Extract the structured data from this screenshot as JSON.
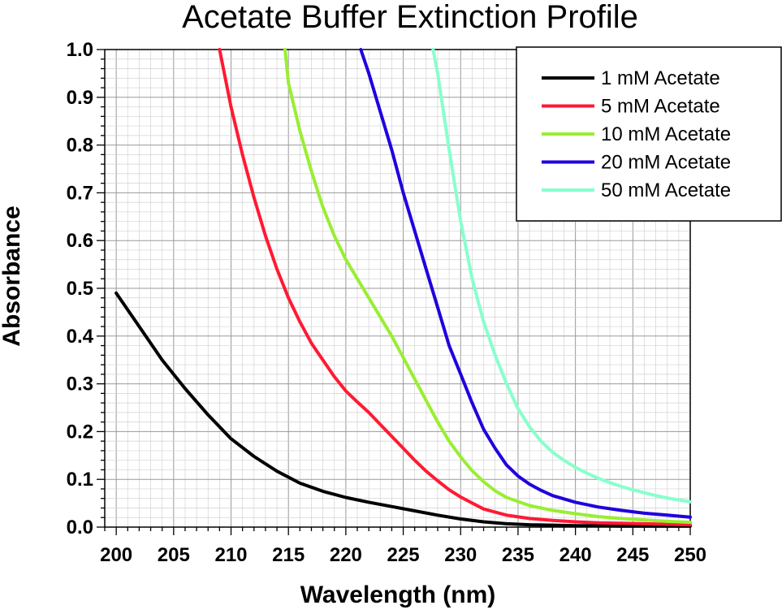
{
  "chart_data": {
    "type": "line",
    "title": "Acetate Buffer Extinction Profile",
    "xlabel": "Wavelength (nm)",
    "ylabel": "Absorbance",
    "xlim": [
      199,
      250
    ],
    "ylim": [
      0,
      1.0
    ],
    "xticks": [
      200,
      205,
      210,
      215,
      220,
      225,
      230,
      235,
      240,
      245,
      250
    ],
    "xtick_labels": [
      "200",
      "205",
      "210",
      "215",
      "220",
      "225",
      "230",
      "235",
      "240",
      "245",
      "250"
    ],
    "yticks": [
      0.0,
      0.1,
      0.2,
      0.3,
      0.4,
      0.5,
      0.6,
      0.7,
      0.8,
      0.9,
      1.0
    ],
    "ytick_labels": [
      "0.0",
      "0.1",
      "0.2",
      "0.3",
      "0.4",
      "0.5",
      "0.6",
      "0.7",
      "0.8",
      "0.9",
      "1.0"
    ],
    "grid": true,
    "legend_position": "top-right",
    "series": [
      {
        "name": "1 mM Acetate",
        "color": "#000000",
        "x": [
          200,
          202,
          204,
          206,
          208,
          210,
          212,
          214,
          216,
          218,
          220,
          222,
          224,
          226,
          228,
          230,
          232,
          234,
          236,
          238,
          240,
          242,
          244,
          246,
          248,
          250
        ],
        "y": [
          0.49,
          0.42,
          0.35,
          0.29,
          0.235,
          0.185,
          0.148,
          0.117,
          0.092,
          0.075,
          0.062,
          0.052,
          0.043,
          0.034,
          0.025,
          0.017,
          0.011,
          0.007,
          0.005,
          0.004,
          0.003,
          0.003,
          0.002,
          0.002,
          0.002,
          0.002
        ]
      },
      {
        "name": "5 mM Acetate",
        "color": "#ff1a33",
        "x": [
          209,
          210,
          211,
          212,
          213,
          214,
          215,
          216,
          217,
          218,
          219,
          220,
          221,
          222,
          223,
          224,
          225,
          226,
          227,
          228,
          229,
          230,
          232,
          234,
          236,
          238,
          240,
          242,
          244,
          246,
          248,
          250
        ],
        "y": [
          1.0,
          0.88,
          0.78,
          0.69,
          0.61,
          0.54,
          0.48,
          0.43,
          0.385,
          0.35,
          0.315,
          0.285,
          0.262,
          0.24,
          0.215,
          0.19,
          0.165,
          0.14,
          0.117,
          0.097,
          0.078,
          0.063,
          0.038,
          0.025,
          0.018,
          0.014,
          0.011,
          0.009,
          0.008,
          0.007,
          0.006,
          0.005
        ]
      },
      {
        "name": "10 mM Acetate",
        "color": "#99ee33",
        "x": [
          214.7,
          215,
          216,
          217,
          218,
          219,
          220,
          221,
          222,
          223,
          224,
          225,
          226,
          227,
          228,
          229,
          230,
          231,
          232,
          233,
          234,
          236,
          238,
          240,
          242,
          244,
          246,
          248,
          250
        ],
        "y": [
          1.0,
          0.93,
          0.83,
          0.745,
          0.67,
          0.61,
          0.56,
          0.52,
          0.48,
          0.44,
          0.4,
          0.355,
          0.31,
          0.265,
          0.22,
          0.18,
          0.147,
          0.118,
          0.095,
          0.076,
          0.062,
          0.045,
          0.035,
          0.028,
          0.022,
          0.018,
          0.015,
          0.012,
          0.01
        ]
      },
      {
        "name": "20 mM Acetate",
        "color": "#1e00dd",
        "x": [
          221.3,
          222,
          223,
          224,
          225,
          226,
          227,
          228,
          229,
          230,
          231,
          232,
          233,
          234,
          235,
          236,
          237,
          238,
          240,
          242,
          244,
          246,
          248,
          250
        ],
        "y": [
          1.0,
          0.95,
          0.87,
          0.79,
          0.7,
          0.62,
          0.54,
          0.46,
          0.38,
          0.32,
          0.26,
          0.205,
          0.165,
          0.13,
          0.107,
          0.09,
          0.077,
          0.066,
          0.052,
          0.042,
          0.035,
          0.029,
          0.025,
          0.021
        ]
      },
      {
        "name": "50 mM Acetate",
        "color": "#88ffcc",
        "x": [
          227.6,
          228,
          229,
          230,
          231,
          232,
          233,
          234,
          235,
          236,
          237,
          238,
          239,
          240,
          241,
          242,
          243,
          244,
          245,
          246,
          247,
          248,
          249,
          250
        ],
        "y": [
          1.0,
          0.95,
          0.79,
          0.64,
          0.52,
          0.43,
          0.36,
          0.3,
          0.248,
          0.21,
          0.18,
          0.157,
          0.14,
          0.125,
          0.113,
          0.102,
          0.093,
          0.085,
          0.078,
          0.072,
          0.066,
          0.061,
          0.057,
          0.053
        ]
      }
    ]
  }
}
